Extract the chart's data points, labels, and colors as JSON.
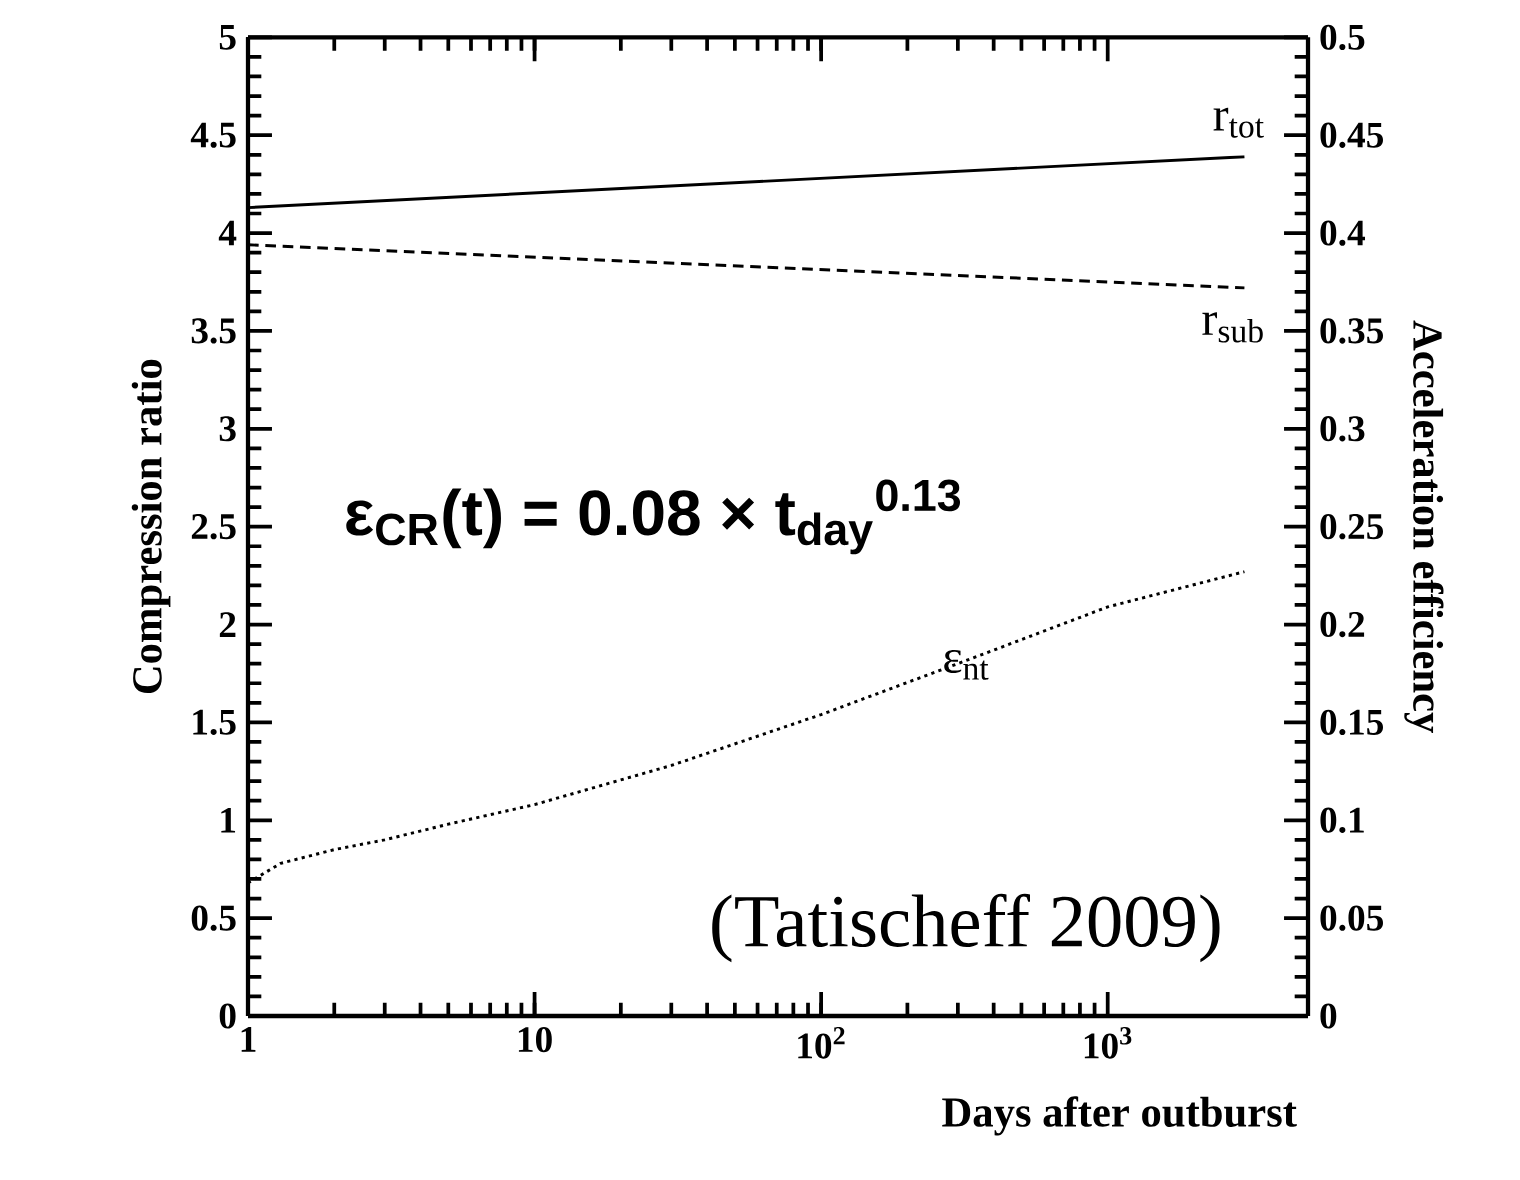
{
  "chart_data": {
    "type": "line",
    "xlabel": "Days after outburst",
    "ylabel": "Compression ratio",
    "y2label": "Acceleration efficiency",
    "log": "x",
    "grid": false,
    "legend": false,
    "marker": "none",
    "xlim": [
      1,
      5000
    ],
    "xticks": [
      1,
      10,
      {
        "value": 100,
        "label": "10$^{2}$"
      },
      {
        "value": 1000,
        "label": "10$^{3}$"
      }
    ],
    "ylim": [
      0,
      5
    ],
    "yticks": [
      0,
      0.5,
      1,
      1.5,
      2,
      2.5,
      3,
      3.5,
      4,
      4.5,
      5
    ],
    "y2lim": [
      0,
      0.5
    ],
    "y2ticks": [
      0,
      0.05,
      0.1,
      0.15,
      0.2,
      0.25,
      0.3,
      0.35,
      0.4,
      0.45,
      0.5
    ],
    "series": [
      {
        "name": "r$_{tot}$",
        "color": "#000000",
        "line_style": "solid",
        "x": [
          1,
          3000
        ],
        "values": [
          4.13,
          4.39
        ]
      },
      {
        "name": "r$_{sub}$",
        "color": "#000000",
        "line_style": "dashed",
        "x": [
          1,
          3000
        ],
        "values": [
          3.94,
          3.72
        ]
      },
      {
        "name": "ε$_{nt}$",
        "color": "#000000",
        "line_style": "dotted",
        "axis": "y2",
        "x": [
          1,
          1.3,
          2,
          3,
          5,
          10,
          30,
          100,
          300,
          1000,
          3000
        ],
        "values": [
          0.068,
          0.078,
          0.085,
          0.09,
          0.098,
          0.108,
          0.128,
          0.154,
          0.18,
          0.209,
          0.227
        ]
      }
    ],
    "annotations": [
      "ε$_{CR}$(t) = 0.08 × t$_{day}$$^{0.13}$",
      "(Tatischeff 2009)"
    ]
  }
}
